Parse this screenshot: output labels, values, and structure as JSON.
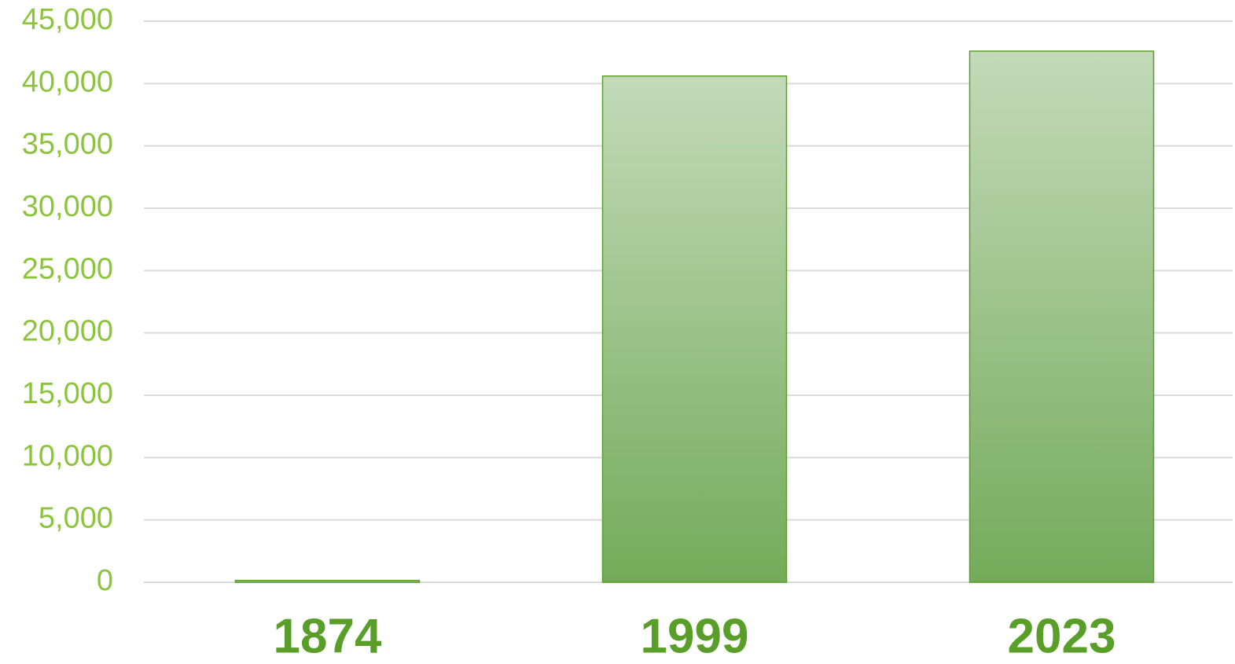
{
  "chart_data": {
    "type": "bar",
    "categories": [
      "1874",
      "1999",
      "2023"
    ],
    "values": [
      150,
      40600,
      42600
    ],
    "color": "#76ac5b",
    "ylim": [
      0,
      45000
    ],
    "yticks": [
      0,
      {
        "value": 5000,
        "label": "5,000"
      },
      {
        "value": 10000,
        "label": "10,000"
      },
      {
        "value": 15000,
        "label": "15,000"
      },
      {
        "value": 20000,
        "label": "20,000"
      },
      {
        "value": 25000,
        "label": "25,000"
      },
      {
        "value": 30000,
        "label": "30,000"
      },
      {
        "value": 35000,
        "label": "35,000"
      },
      {
        "value": 40000,
        "label": "40,000"
      },
      {
        "value": 45000,
        "label": "45,000"
      }
    ],
    "grid": true
  }
}
